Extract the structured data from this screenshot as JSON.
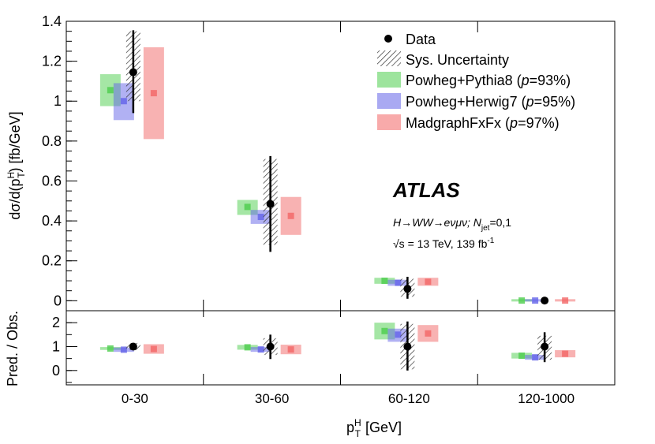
{
  "chart_data": {
    "type": "bar",
    "title": "",
    "x_label_main": "p",
    "x_label_sup": "H",
    "x_label_sub": "T",
    "x_label_unit": "[GeV]",
    "y_label_top": "dσ/d(p",
    "y_label_top_sup": "H",
    "y_label_top_sub": "T",
    "y_label_top_unit": ") [fb/GeV]",
    "y_label_bottom": "Pred. / Obs.",
    "categories": [
      "0-30",
      "30-60",
      "60-120",
      "120-1000"
    ],
    "ylim": [
      -0.05,
      1.4
    ],
    "ratio_ylim": [
      -0.6,
      2.5
    ],
    "y_ticks": [
      "0",
      "0.2",
      "0.4",
      "0.6",
      "0.8",
      "1",
      "1.2",
      "1.4"
    ],
    "y_tick_values": [
      0,
      0.2,
      0.4,
      0.6,
      0.8,
      1.0,
      1.2,
      1.4
    ],
    "ratio_ticks": [
      "0",
      "1",
      "2"
    ],
    "ratio_tick_values": [
      0,
      1,
      2
    ],
    "data": {
      "name": "Data",
      "values": [
        1.145,
        0.485,
        0.06,
        0.001
      ],
      "stat_low": [
        0.94,
        0.245,
        0.01,
        0.0
      ],
      "stat_high": [
        1.355,
        0.725,
        0.12,
        0.002
      ],
      "sys_low": [
        1.0,
        0.28,
        0.02,
        0.0
      ],
      "sys_high": [
        1.35,
        0.71,
        0.11,
        0.002
      ],
      "ratio_stat_low": [
        0.9,
        0.48,
        0.0,
        0.35
      ],
      "ratio_stat_high": [
        1.1,
        1.5,
        2.05,
        1.6
      ],
      "ratio_sys_low": [
        0.85,
        0.65,
        0.05,
        0.45
      ],
      "ratio_sys_high": [
        1.15,
        1.35,
        1.95,
        1.45
      ]
    },
    "series": [
      {
        "name": "Powheg+Pythia8",
        "p_value": "93%",
        "color": "#4ccd4c",
        "values": [
          1.055,
          0.47,
          0.1,
          0.001
        ],
        "low": [
          0.975,
          0.43,
          0.085,
          0.0
        ],
        "high": [
          1.135,
          0.505,
          0.115,
          0.002
        ],
        "ratio": [
          0.92,
          0.97,
          1.65,
          0.62
        ],
        "ratio_low": [
          0.86,
          0.87,
          1.3,
          0.5
        ],
        "ratio_high": [
          0.98,
          1.07,
          2.0,
          0.74
        ]
      },
      {
        "name": "Powheg+Herwig7",
        "p_value": "95%",
        "color": "#6363e8",
        "values": [
          1.0,
          0.42,
          0.09,
          0.001
        ],
        "low": [
          0.905,
          0.385,
          0.075,
          0.0
        ],
        "high": [
          1.09,
          0.455,
          0.105,
          0.002
        ],
        "ratio": [
          0.87,
          0.88,
          1.5,
          0.55
        ],
        "ratio_low": [
          0.78,
          0.78,
          1.2,
          0.45
        ],
        "ratio_high": [
          0.96,
          0.98,
          1.75,
          0.65
        ]
      },
      {
        "name": "MadgraphFxFx",
        "p_value": "97%",
        "color": "#f26565",
        "values": [
          1.04,
          0.425,
          0.095,
          0.001
        ],
        "low": [
          0.81,
          0.33,
          0.075,
          0.0
        ],
        "high": [
          1.27,
          0.52,
          0.115,
          0.002
        ],
        "ratio": [
          0.9,
          0.88,
          1.55,
          0.7
        ],
        "ratio_low": [
          0.7,
          0.68,
          1.2,
          0.55
        ],
        "ratio_high": [
          1.1,
          1.08,
          1.9,
          0.85
        ]
      }
    ],
    "legend": {
      "data_label": "Data",
      "sys_label": "Sys. Uncertainty",
      "placement": "top-right"
    },
    "annotations": {
      "experiment": "ATLAS",
      "process": "H→WW→eνμν; N",
      "process_sub": "jet",
      "process_tail": "=0,1",
      "energy_prefix": "√s",
      "energy_text": " = 13 TeV, 139 fb",
      "energy_sup": "-1"
    }
  }
}
